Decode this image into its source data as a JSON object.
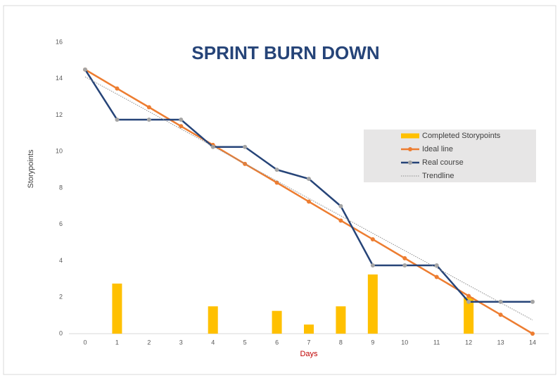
{
  "chart_data": {
    "type": "combo",
    "title": "SPRINT BURN DOWN",
    "x_label": "Days",
    "y_label": "Storypoints",
    "x": [
      0,
      1,
      2,
      3,
      4,
      5,
      6,
      7,
      8,
      9,
      10,
      11,
      12,
      13,
      14
    ],
    "xlim": [
      0,
      14
    ],
    "xticks": [
      0,
      1,
      2,
      3,
      4,
      5,
      6,
      7,
      8,
      9,
      10,
      11,
      12,
      13,
      14
    ],
    "ylim": [
      0,
      16
    ],
    "yticks": [
      0,
      2,
      4,
      6,
      8,
      10,
      12,
      14,
      16
    ],
    "grid": false,
    "legend": "right",
    "series": [
      {
        "name": "Completed Storypoints",
        "type": "bar",
        "color": "#ffc000",
        "values": [
          null,
          2.75,
          null,
          null,
          1.5,
          null,
          1.25,
          0.5,
          1.5,
          3.25,
          null,
          null,
          2,
          null,
          null
        ]
      },
      {
        "name": "Ideal line",
        "type": "line",
        "color": "#ed7d31",
        "marker_color": "#ed7d31",
        "values": [
          14.5,
          13.46,
          12.43,
          11.39,
          10.36,
          9.32,
          8.29,
          7.25,
          6.21,
          5.18,
          4.14,
          3.11,
          2.07,
          1.04,
          0
        ]
      },
      {
        "name": "Real course",
        "type": "line",
        "color": "#264478",
        "marker_color": "#a5a5a5",
        "values": [
          14.5,
          11.75,
          11.75,
          11.75,
          10.25,
          10.25,
          9,
          8.5,
          7,
          3.75,
          3.75,
          3.75,
          1.75,
          1.75,
          1.75
        ]
      },
      {
        "name": "Trendline",
        "type": "dotted",
        "color": "#8c8c8c",
        "values": [
          14.1,
          13.15,
          12.19,
          11.24,
          10.28,
          9.33,
          8.38,
          7.42,
          6.47,
          5.51,
          4.56,
          3.61,
          2.65,
          1.7,
          0.75
        ]
      }
    ]
  }
}
